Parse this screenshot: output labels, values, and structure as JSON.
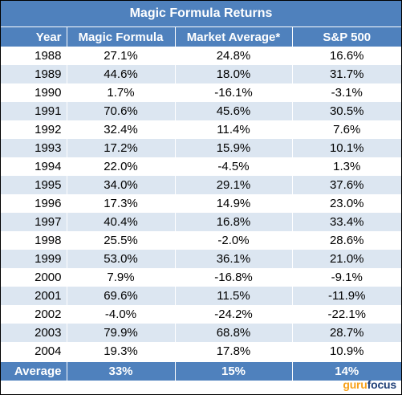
{
  "chart_data": {
    "type": "table",
    "title": "Magic Formula Returns",
    "columns": [
      "Year",
      "Magic Formula",
      "Market Average*",
      "S&P 500"
    ],
    "rows": [
      [
        "1988",
        "27.1%",
        "24.8%",
        "16.6%"
      ],
      [
        "1989",
        "44.6%",
        "18.0%",
        "31.7%"
      ],
      [
        "1990",
        "1.7%",
        "-16.1%",
        "-3.1%"
      ],
      [
        "1991",
        "70.6%",
        "45.6%",
        "30.5%"
      ],
      [
        "1992",
        "32.4%",
        "11.4%",
        "7.6%"
      ],
      [
        "1993",
        "17.2%",
        "15.9%",
        "10.1%"
      ],
      [
        "1994",
        "22.0%",
        "-4.5%",
        "1.3%"
      ],
      [
        "1995",
        "34.0%",
        "29.1%",
        "37.6%"
      ],
      [
        "1996",
        "17.3%",
        "14.9%",
        "23.0%"
      ],
      [
        "1997",
        "40.4%",
        "16.8%",
        "33.4%"
      ],
      [
        "1998",
        "25.5%",
        "-2.0%",
        "28.6%"
      ],
      [
        "1999",
        "53.0%",
        "36.1%",
        "21.0%"
      ],
      [
        "2000",
        "7.9%",
        "-16.8%",
        "-9.1%"
      ],
      [
        "2001",
        "69.6%",
        "11.5%",
        "-11.9%"
      ],
      [
        "2002",
        "-4.0%",
        "-24.2%",
        "-22.1%"
      ],
      [
        "2003",
        "79.9%",
        "68.8%",
        "28.7%"
      ],
      [
        "2004",
        "19.3%",
        "17.8%",
        "10.9%"
      ]
    ],
    "footer": [
      "Average",
      "33%",
      "15%",
      "14%"
    ]
  },
  "watermark": {
    "part1": "guru",
    "part2": "focus"
  },
  "colors": {
    "header": "#4f81bd",
    "band": "#dce6f1",
    "watermark_orange": "#f7a11a",
    "watermark_navy": "#1f3f77"
  }
}
